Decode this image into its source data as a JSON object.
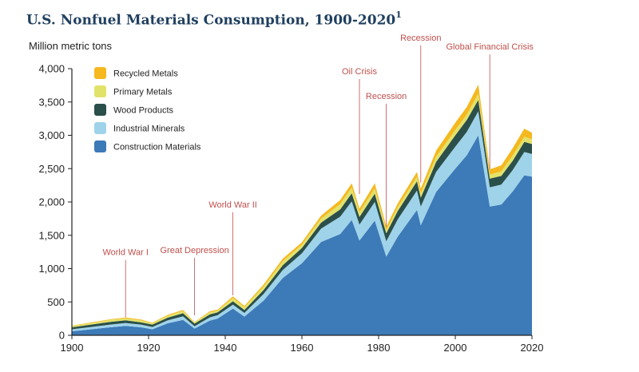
{
  "header": {
    "title": "U.S. Nonfuel Materials Consumption, 1900-2020",
    "footnote_marker": "1"
  },
  "chart_data": {
    "type": "area",
    "stacked": true,
    "title": "U.S. Nonfuel Materials Consumption, 1900-2020",
    "xlabel": "",
    "ylabel": "Million metric tons",
    "xlim": [
      1900,
      2020
    ],
    "ylim": [
      0,
      4000
    ],
    "x_ticks": [
      1900,
      1920,
      1940,
      1960,
      1980,
      2000,
      2020
    ],
    "y_ticks": [
      0,
      500,
      1000,
      1500,
      2000,
      2500,
      3000,
      3500,
      4000
    ],
    "y_tick_labels": [
      "0",
      "500",
      "1,000",
      "1,500",
      "2,000",
      "2,500",
      "3,000",
      "3,500",
      "4,000"
    ],
    "grid": false,
    "legend_position": "top-left",
    "x": [
      1900,
      1905,
      1910,
      1914,
      1918,
      1921,
      1925,
      1929,
      1932,
      1936,
      1938,
      1942,
      1945,
      1950,
      1955,
      1960,
      1965,
      1970,
      1973,
      1975,
      1979,
      1982,
      1985,
      1990,
      1991,
      1995,
      2000,
      2003,
      2006,
      2009,
      2012,
      2015,
      2018,
      2020
    ],
    "series": [
      {
        "name": "Construction Materials",
        "color": "#3d7ab8",
        "values": [
          60,
          90,
          120,
          140,
          120,
          90,
          180,
          230,
          100,
          220,
          250,
          400,
          280,
          520,
          860,
          1080,
          1400,
          1520,
          1730,
          1420,
          1720,
          1180,
          1480,
          1880,
          1650,
          2150,
          2500,
          2700,
          3000,
          1930,
          1960,
          2160,
          2400,
          2380
        ]
      },
      {
        "name": "Industrial Minerals",
        "color": "#9fd3ea",
        "values": [
          30,
          35,
          40,
          45,
          40,
          35,
          45,
          55,
          35,
          50,
          50,
          60,
          55,
          100,
          120,
          150,
          200,
          260,
          280,
          240,
          280,
          230,
          260,
          290,
          280,
          300,
          330,
          350,
          360,
          290,
          300,
          320,
          350,
          340
        ]
      },
      {
        "name": "Wood Products",
        "color": "#2b4f4a",
        "values": [
          30,
          35,
          40,
          40,
          35,
          35,
          40,
          45,
          40,
          45,
          45,
          50,
          45,
          60,
          70,
          80,
          90,
          110,
          120,
          115,
          125,
          120,
          125,
          140,
          135,
          150,
          170,
          180,
          170,
          130,
          130,
          140,
          150,
          150
        ]
      },
      {
        "name": "Primary Metals",
        "color": "#e2e26a",
        "values": [
          20,
          25,
          30,
          30,
          30,
          20,
          30,
          35,
          15,
          30,
          25,
          50,
          40,
          50,
          60,
          50,
          60,
          80,
          85,
          70,
          80,
          50,
          60,
          70,
          65,
          80,
          80,
          80,
          95,
          60,
          70,
          80,
          80,
          70
        ]
      },
      {
        "name": "Recycled Metals",
        "color": "#f5b81f",
        "values": [
          5,
          8,
          10,
          12,
          12,
          8,
          12,
          15,
          8,
          15,
          15,
          25,
          20,
          30,
          40,
          35,
          45,
          60,
          65,
          55,
          75,
          50,
          55,
          70,
          70,
          90,
          110,
          115,
          135,
          80,
          90,
          110,
          120,
          100
        ]
      }
    ],
    "legend_order": [
      "Recycled Metals",
      "Primary Metals",
      "Wood Products",
      "Industrial Minerals",
      "Construction Materials"
    ],
    "annotations": [
      {
        "label": "World War I",
        "year": 1914,
        "value": 270
      },
      {
        "label": "Great Depression",
        "year": 1932,
        "value": 300
      },
      {
        "label": "World War II",
        "year": 1942,
        "value": 600
      },
      {
        "label": "Oil Crisis",
        "year": 1975,
        "value": 2120
      },
      {
        "label": "Recession",
        "year": 1982,
        "value": 1630
      },
      {
        "label": "Recession",
        "year": 1991,
        "value": 2290
      },
      {
        "label": "Global Financial Crisis",
        "year": 2009,
        "value": 2490
      }
    ]
  }
}
